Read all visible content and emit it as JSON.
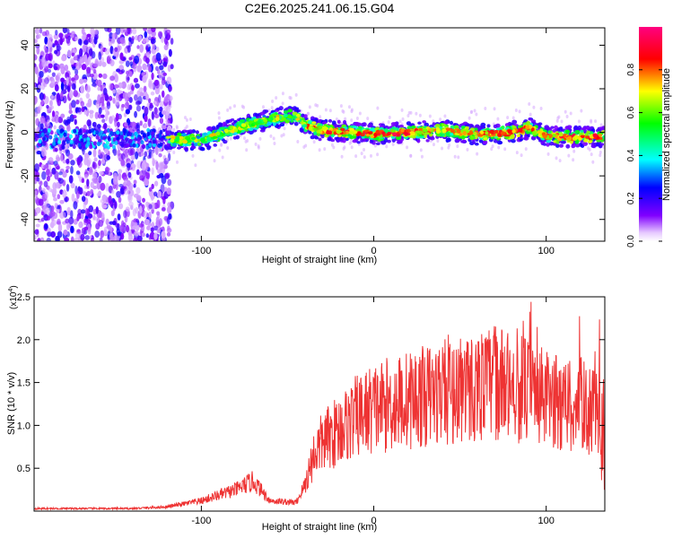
{
  "page": {
    "title": "C2E6.2025.241.06.15.G04"
  },
  "chart_data": [
    {
      "type": "heatmap",
      "title": "C2E6.2025.241.06.15.G04",
      "xlabel": "Height of straight line (km)",
      "ylabel": "Frequency (Hz)",
      "xlim": [
        -197,
        134
      ],
      "ylim": [
        -50,
        48
      ],
      "x_ticks": [
        -100,
        0,
        100
      ],
      "x_tick_labels": [
        "-100",
        "0",
        "100"
      ],
      "y_ticks": [
        -40,
        -20,
        0,
        20,
        40
      ],
      "y_tick_labels": [
        "-40",
        "-20",
        "0",
        "20",
        "40"
      ],
      "colorbar": {
        "label": "Normalized spectral amplitude",
        "range": [
          0,
          1
        ],
        "ticks": [
          0.0,
          0.2,
          0.4,
          0.6,
          0.8
        ],
        "tick_labels": [
          "0.0",
          "0.2",
          "0.4",
          "0.6",
          "0.8"
        ]
      },
      "ridge": {
        "x": [
          -120,
          -100,
          -80,
          -60,
          -45,
          -40,
          -30,
          -10,
          0,
          20,
          40,
          60,
          80,
          90,
          100,
          134
        ],
        "freq": [
          -3,
          -4,
          2,
          6,
          8,
          3,
          1,
          0,
          -1,
          0,
          1,
          -1,
          0,
          2,
          -2,
          -2
        ]
      }
    },
    {
      "type": "line",
      "xlabel": "Height of straight line (km)",
      "ylabel": "SNR (10 * v/v)",
      "y_multiplier_label": "(x10",
      "y_multiplier_exponent": "4",
      "xlim": [
        -197,
        134
      ],
      "ylim": [
        0,
        2.5
      ],
      "x_ticks": [
        -100,
        0,
        100
      ],
      "x_tick_labels": [
        "-100",
        "0",
        "100"
      ],
      "y_ticks": [
        0.5,
        1.0,
        1.5,
        2.0,
        2.5
      ],
      "y_tick_labels": [
        "0.5",
        "1.0",
        "1.5",
        "2.0",
        "2.5"
      ],
      "series": [
        {
          "name": "SNR",
          "color": "#ee3333",
          "envelope_x": [
            -197,
            -140,
            -120,
            -100,
            -80,
            -70,
            -60,
            -45,
            -40,
            -35,
            -30,
            -20,
            -10,
            0,
            20,
            40,
            60,
            70,
            80,
            90,
            100,
            110,
            120,
            130,
            134
          ],
          "envelope_y": [
            0.03,
            0.03,
            0.05,
            0.12,
            0.25,
            0.35,
            0.12,
            0.1,
            0.3,
            0.65,
            0.8,
            0.95,
            1.1,
            1.2,
            1.3,
            1.38,
            1.45,
            1.5,
            1.45,
            1.4,
            1.3,
            1.25,
            1.25,
            1.1,
            1.2
          ]
        }
      ]
    }
  ]
}
